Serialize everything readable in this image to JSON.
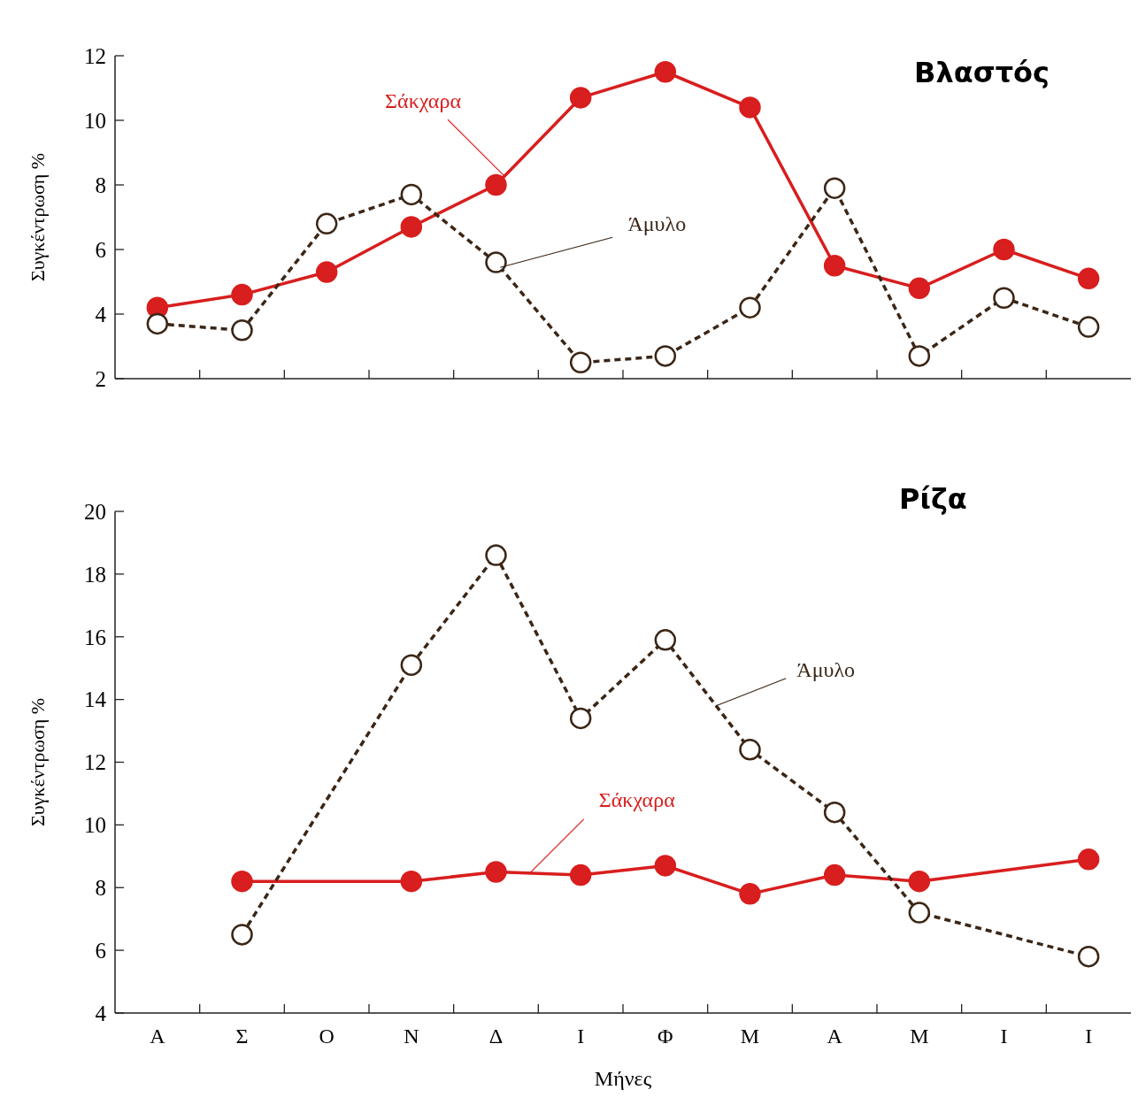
{
  "chart_data": [
    {
      "type": "line",
      "title": "Βλαστός",
      "ylabel": "Συγκέντρωση %",
      "categories": [
        null,
        null,
        null,
        null,
        null,
        null,
        null,
        null,
        null,
        null,
        null,
        null
      ],
      "ylim": [
        2,
        12
      ],
      "yticks": [
        2,
        4,
        6,
        8,
        10,
        12
      ],
      "marker": "circle",
      "series": [
        {
          "name": "Σάκχαρα",
          "color": "#d81e1e",
          "line_style": "solid",
          "values": [
            4.2,
            4.6,
            5.3,
            6.7,
            8.0,
            10.7,
            11.5,
            10.4,
            5.5,
            4.8,
            6.0,
            5.1
          ]
        },
        {
          "name": "Άμυλο",
          "color": "#3b2616",
          "line_style": "dashed",
          "values": [
            3.7,
            3.5,
            6.8,
            7.7,
            5.6,
            2.5,
            2.7,
            4.2,
            7.9,
            2.7,
            4.5,
            3.6
          ]
        }
      ]
    },
    {
      "type": "line",
      "title": "Ρίζα",
      "ylabel": "Συγκέντρωση %",
      "xlabel": "Μήνες",
      "categories": [
        "Α",
        "Σ",
        "Ο",
        "Ν",
        "Δ",
        "Ι",
        "Φ",
        "Μ",
        "Α",
        "Μ",
        "Ι",
        "Ι"
      ],
      "ylim": [
        4,
        20
      ],
      "yticks": [
        4,
        6,
        8,
        10,
        12,
        14,
        16,
        18,
        20
      ],
      "marker": "circle",
      "series": [
        {
          "name": "Σάκχαρα",
          "color": "#d81e1e",
          "line_style": "solid",
          "values": [
            null,
            8.2,
            null,
            8.2,
            8.5,
            8.4,
            8.7,
            7.8,
            8.4,
            8.2,
            null,
            8.9
          ]
        },
        {
          "name": "Άμυλο",
          "color": "#3b2616",
          "line_style": "dashed",
          "values": [
            null,
            6.5,
            null,
            15.1,
            18.6,
            13.4,
            15.9,
            12.4,
            10.4,
            7.2,
            null,
            5.8
          ]
        }
      ]
    }
  ]
}
